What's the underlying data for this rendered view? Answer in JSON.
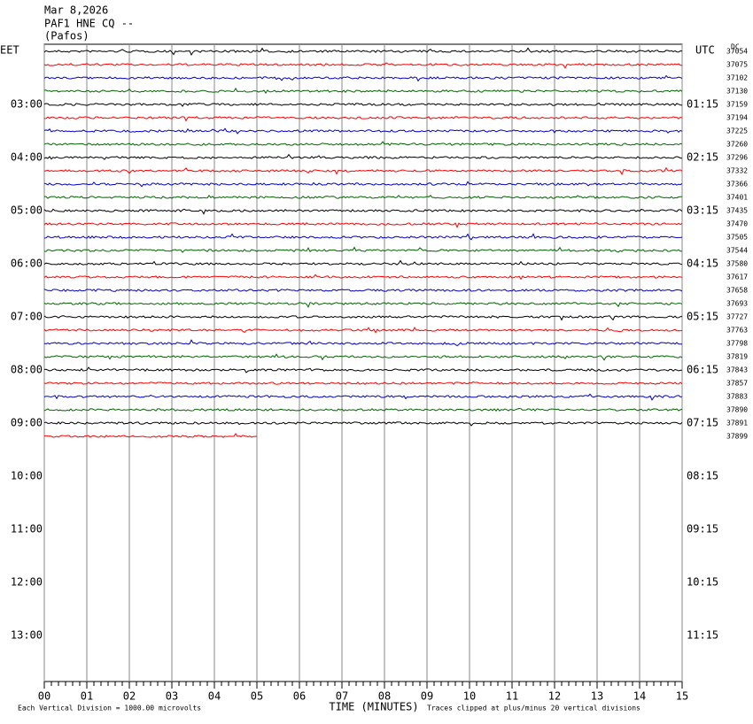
{
  "header": {
    "lines": [
      "Mar 8,2026",
      "PAF1 HNE CQ --",
      "(Pafos)"
    ]
  },
  "left_labels": [
    "EET",
    "03:00",
    "04:00",
    "05:00",
    "06:00",
    "07:00",
    "08:00",
    "09:00",
    "10:00",
    "11:00",
    "12:00",
    "13:00"
  ],
  "right_labels": [
    "UTC",
    "01:15",
    "02:15",
    "03:15",
    "04:15",
    "05:15",
    "06:15",
    "07:15",
    "08:15",
    "09:15",
    "10:15",
    "11:15"
  ],
  "dc_label": "DC",
  "trace_counts": [
    "37054",
    "37075",
    "37102",
    "37130",
    "37159",
    "37194",
    "37225",
    "37260",
    "37296",
    "37332",
    "37366",
    "37401",
    "37435",
    "37470",
    "37505",
    "37544",
    "37580",
    "37617",
    "37658",
    "37693",
    "37727",
    "37763",
    "37798",
    "37819",
    "37843",
    "37857",
    "37883",
    "37890",
    "37891",
    "37899"
  ],
  "trace_colors": [
    "#000000",
    "#ff0000",
    "#0000cc",
    "#006600"
  ],
  "x_axis": {
    "ticks": [
      "00",
      "01",
      "02",
      "03",
      "04",
      "05",
      "06",
      "07",
      "08",
      "09",
      "10",
      "11",
      "12",
      "13",
      "14",
      "15"
    ],
    "title": "TIME (MINUTES)"
  },
  "footer": {
    "scale_note": "Each Vertical Division = 1000.00 microvolts",
    "clip_note": "Traces clipped at plus/minus 20 vertical divisions"
  }
}
